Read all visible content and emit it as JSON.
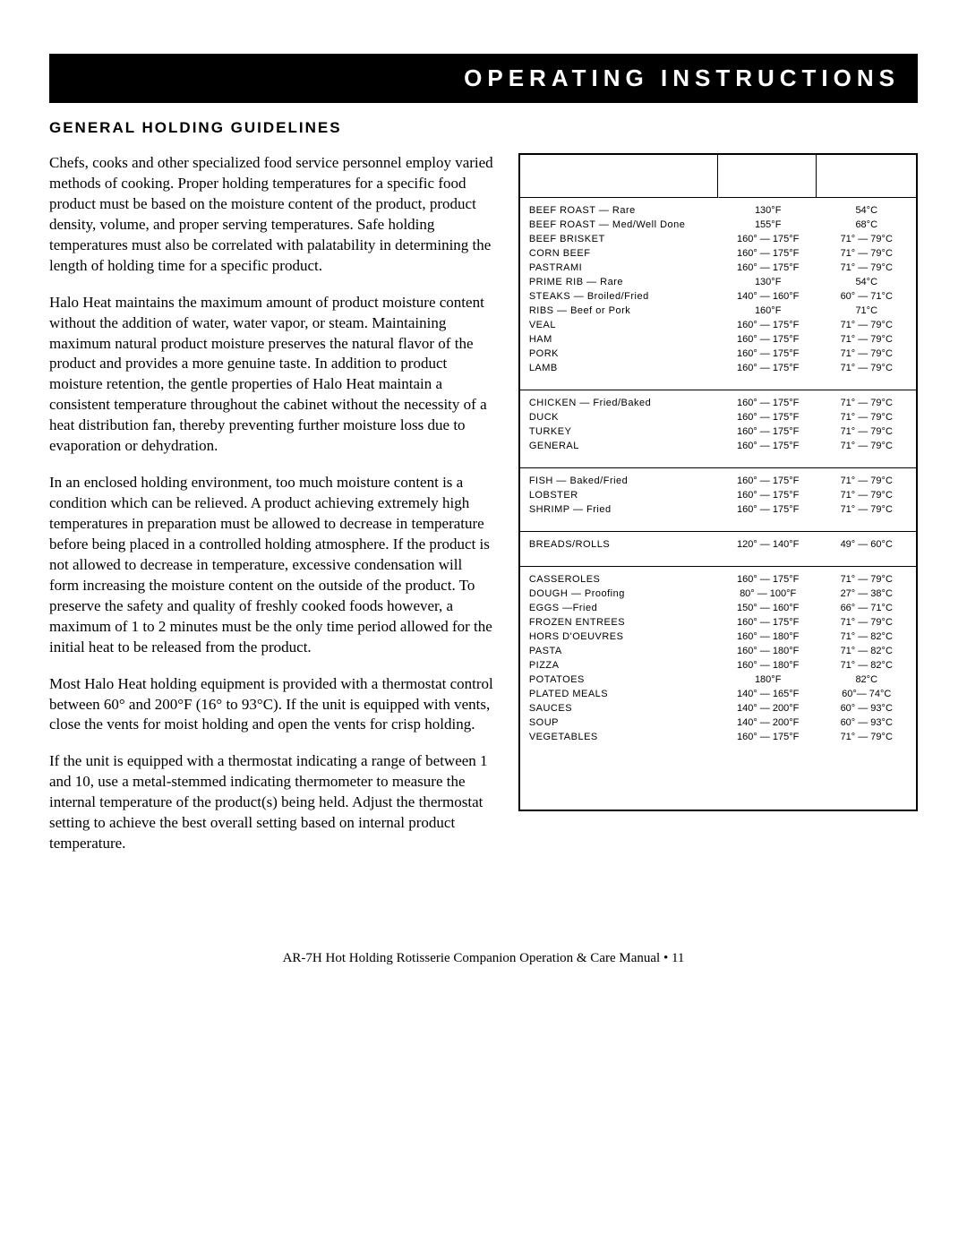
{
  "header": {
    "title": "OPERATING INSTRUCTIONS"
  },
  "section_title": "GENERAL HOLDING GUIDELINES",
  "paragraphs": [
    "Chefs, cooks and other specialized food service personnel employ varied methods of cooking. Proper holding temperatures for a specific food product must be based on the moisture content of the product, product density, volume, and proper serving temperatures.  Safe holding temperatures must also be correlated with palatability in determining the length of holding time for a specific product.",
    "Halo Heat maintains the maximum amount of product moisture content without the addition of water, water vapor, or steam.  Maintaining maximum natural product moisture preserves the natural flavor of the product and provides a more genuine taste. In addition to product moisture retention, the gentle properties of Halo Heat maintain a consistent temperature throughout the cabinet without the necessity of a heat distribution fan, thereby preventing further moisture loss due to evaporation or dehydration.",
    "In an enclosed holding environment, too much moisture content is a condition which can be relieved.  A product achieving extremely high temperatures in preparation must be allowed to decrease in temperature before being placed in a controlled holding atmosphere.  If the product is not allowed to decrease in temperature, excessive condensation will form increasing the moisture content on the outside of the product.  To preserve the safety and quality of freshly cooked foods however, a maximum of 1 to 2 minutes must be the only time period allowed for the initial heat to be released from the product.",
    "Most Halo Heat holding equipment is provided with a thermostat control between 60° and 200°F (16° to 93°C). If the unit is equipped with vents, close the vents for moist holding and open the vents for crisp holding.",
    "If the unit is equipped with a thermostat indicating a range of between 1 and 10, use a metal-stemmed indicating thermometer to measure the internal temperature of the product(s) being held.  Adjust the thermostat setting to achieve the best overall setting based on internal product temperature."
  ],
  "table": {
    "groups": [
      {
        "rows": [
          {
            "item": "BEEF ROAST — Rare",
            "f": "130°F",
            "c": "54°C"
          },
          {
            "item": "BEEF ROAST — Med/Well Done",
            "f": "155°F",
            "c": "68°C"
          },
          {
            "item": "BEEF BRISKET",
            "f": "160° — 175°F",
            "c": "71° — 79°C"
          },
          {
            "item": "CORN BEEF",
            "f": "160° — 175°F",
            "c": "71° — 79°C"
          },
          {
            "item": "PASTRAMI",
            "f": "160° — 175°F",
            "c": "71° — 79°C"
          },
          {
            "item": "PRIME RIB — Rare",
            "f": "130°F",
            "c": "54°C"
          },
          {
            "item": "STEAKS — Broiled/Fried",
            "f": "140° — 160°F",
            "c": "60° — 71°C"
          },
          {
            "item": "RIBS — Beef or Pork",
            "f": "160°F",
            "c": "71°C"
          },
          {
            "item": "VEAL",
            "f": "160° — 175°F",
            "c": "71° — 79°C"
          },
          {
            "item": "HAM",
            "f": "160° — 175°F",
            "c": "71° — 79°C"
          },
          {
            "item": "PORK",
            "f": "160° — 175°F",
            "c": "71° — 79°C"
          },
          {
            "item": "LAMB",
            "f": "160° — 175°F",
            "c": "71° — 79°C"
          }
        ]
      },
      {
        "rows": [
          {
            "item": "CHICKEN — Fried/Baked",
            "f": "160° — 175°F",
            "c": "71° — 79°C"
          },
          {
            "item": "DUCK",
            "f": "160° — 175°F",
            "c": "71° — 79°C"
          },
          {
            "item": "TURKEY",
            "f": "160° — 175°F",
            "c": "71° — 79°C"
          },
          {
            "item": "GENERAL",
            "f": "160° — 175°F",
            "c": "71° — 79°C"
          }
        ]
      },
      {
        "rows": [
          {
            "item": "FISH — Baked/Fried",
            "f": "160° — 175°F",
            "c": "71° — 79°C"
          },
          {
            "item": "LOBSTER",
            "f": "160° — 175°F",
            "c": "71° — 79°C"
          },
          {
            "item": "SHRIMP — Fried",
            "f": "160° — 175°F",
            "c": "71° — 79°C"
          }
        ]
      },
      {
        "rows": [
          {
            "item": "BREADS/ROLLS",
            "f": "120° — 140°F",
            "c": "49° — 60°C"
          }
        ]
      },
      {
        "rows": [
          {
            "item": "CASSEROLES",
            "f": "160° — 175°F",
            "c": "71° — 79°C"
          },
          {
            "item": "DOUGH — Proofing",
            "f": "80° — 100°F",
            "c": "27° — 38°C"
          },
          {
            "item": "EGGS —Fried",
            "f": "150° — 160°F",
            "c": "66° — 71°C"
          },
          {
            "item": "FROZEN ENTREES",
            "f": "160° — 175°F",
            "c": "71° — 79°C"
          },
          {
            "item": "HORS D'OEUVRES",
            "f": "160° — 180°F",
            "c": "71° — 82°C"
          },
          {
            "item": "PASTA",
            "f": "160° — 180°F",
            "c": "71° — 82°C"
          },
          {
            "item": "PIZZA",
            "f": "160° — 180°F",
            "c": "71° — 82°C"
          },
          {
            "item": "POTATOES",
            "f": "180°F",
            "c": "82°C"
          },
          {
            "item": "PLATED MEALS",
            "f": "140° — 165°F",
            "c": "60°— 74°C"
          },
          {
            "item": "SAUCES",
            "f": "140° — 200°F",
            "c": "60° — 93°C"
          },
          {
            "item": "SOUP",
            "f": "140° — 200°F",
            "c": "60° — 93°C"
          },
          {
            "item": "VEGETABLES",
            "f": "160° — 175°F",
            "c": "71° — 79°C"
          }
        ]
      }
    ]
  },
  "footer": "AR-7H Hot Holding Rotisserie Companion Operation & Care Manual • 11"
}
